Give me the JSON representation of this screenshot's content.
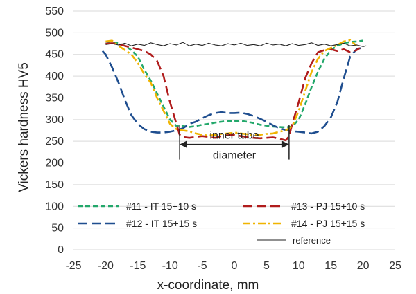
{
  "chart_data": {
    "type": "line",
    "xlabel": "x-coordinate, mm",
    "ylabel": "Vickers hardness  HV5",
    "xlim": [
      -25,
      25
    ],
    "ylim": [
      0,
      550
    ],
    "xticks": [
      -25,
      -20,
      -15,
      -10,
      -5,
      0,
      5,
      10,
      15,
      20,
      25
    ],
    "yticks": [
      0,
      50,
      100,
      150,
      200,
      250,
      300,
      350,
      400,
      450,
      500,
      550
    ],
    "grid": "horizontal",
    "legend_position": "lower",
    "annotation": {
      "lines": [
        "inner tube",
        "diameter"
      ],
      "x_range": [
        -8.5,
        8.5
      ],
      "y": 243
    },
    "series": [
      {
        "name": "#11 - IT 15+10 s",
        "color": "#23a86b",
        "dash": "short-dash",
        "x": [
          -20,
          -19,
          -18,
          -17,
          -16,
          -15,
          -14,
          -13,
          -12,
          -11,
          -10,
          -9,
          -8,
          -7,
          -6,
          -5,
          -4,
          -3,
          -2,
          -1,
          0,
          1,
          2,
          3,
          4,
          5,
          6,
          7,
          8,
          9,
          10,
          11,
          12,
          13,
          14,
          15,
          16,
          17,
          18,
          19,
          20
        ],
        "y": [
          475,
          478,
          476,
          470,
          460,
          445,
          415,
          390,
          360,
          330,
          300,
          285,
          285,
          283,
          285,
          288,
          290,
          293,
          295,
          297,
          296,
          297,
          295,
          292,
          288,
          286,
          284,
          283,
          282,
          284,
          300,
          335,
          375,
          410,
          440,
          460,
          470,
          476,
          479,
          480,
          482
        ]
      },
      {
        "name": "#12 - IT 15+15 s",
        "color": "#1f4e8f",
        "dash": "long-dash",
        "x": [
          -20.5,
          -20,
          -19,
          -18,
          -17,
          -16,
          -15,
          -14,
          -13,
          -12,
          -11,
          -10,
          -9,
          -8,
          -7,
          -6,
          -5,
          -4,
          -3,
          -2,
          -1,
          0,
          1,
          2,
          3,
          4,
          5,
          6,
          7,
          8,
          9,
          10,
          11,
          12,
          13,
          14,
          15,
          16,
          17,
          18,
          19,
          20
        ],
        "y": [
          458,
          450,
          420,
          385,
          345,
          310,
          290,
          278,
          272,
          270,
          270,
          272,
          275,
          280,
          290,
          295,
          303,
          310,
          315,
          317,
          315,
          315,
          316,
          313,
          308,
          302,
          295,
          287,
          280,
          276,
          273,
          272,
          270,
          268,
          272,
          285,
          305,
          340,
          395,
          445,
          462,
          466
        ]
      },
      {
        "name": "#13 - PJ 15+10 s",
        "color": "#b01c1c",
        "dash": "long-dash",
        "x": [
          -20,
          -19,
          -18,
          -17,
          -16,
          -15,
          -14,
          -13,
          -12,
          -11,
          -10,
          -9,
          -8.5,
          -8,
          -7,
          -6,
          -5,
          -4,
          -3,
          -2,
          -1,
          0,
          1,
          2,
          3,
          4,
          5,
          6,
          7,
          8,
          8.5,
          9,
          10,
          11,
          12,
          13,
          14,
          15,
          16,
          17,
          18,
          19,
          19.5
        ],
        "y": [
          475,
          476,
          474,
          470,
          466,
          462,
          458,
          450,
          435,
          400,
          340,
          290,
          265,
          260,
          258,
          260,
          262,
          260,
          258,
          262,
          264,
          265,
          262,
          260,
          258,
          257,
          258,
          259,
          256,
          252,
          262,
          290,
          340,
          395,
          430,
          455,
          460,
          462,
          458,
          462,
          455,
          460,
          465
        ]
      },
      {
        "name": "#14 - PJ 15+15 s",
        "color": "#f0b400",
        "dash": "dash-dot",
        "x": [
          -20,
          -19,
          -18,
          -17,
          -16,
          -15,
          -14,
          -13,
          -12,
          -11,
          -10,
          -9,
          -8,
          -7,
          -6,
          -5,
          -4,
          -3,
          -2,
          -1,
          0,
          1,
          2,
          3,
          4,
          5,
          6,
          7,
          8,
          9,
          10,
          11,
          12,
          13,
          14,
          15,
          16,
          17,
          18,
          19
        ],
        "y": [
          480,
          482,
          470,
          460,
          450,
          430,
          405,
          385,
          350,
          320,
          290,
          278,
          275,
          273,
          268,
          265,
          263,
          265,
          267,
          268,
          270,
          268,
          266,
          264,
          265,
          267,
          268,
          272,
          275,
          285,
          320,
          365,
          410,
          440,
          458,
          465,
          472,
          480,
          483,
          470
        ]
      },
      {
        "name": "reference",
        "color": "#222222",
        "dash": "solid-thin",
        "x": [
          -20,
          -19,
          -18,
          -17,
          -16,
          -15,
          -14,
          -13,
          -12,
          -11,
          -10,
          -9,
          -8,
          -7,
          -6,
          -5,
          -4,
          -3,
          -2,
          -1,
          0,
          1,
          2,
          3,
          4,
          5,
          6,
          7,
          8,
          9,
          10,
          11,
          12,
          13,
          14,
          15,
          16,
          17,
          18,
          19,
          20,
          20.5
        ],
        "y": [
          473,
          475,
          472,
          476,
          470,
          474,
          471,
          477,
          473,
          470,
          475,
          472,
          478,
          470,
          474,
          471,
          476,
          472,
          470,
          475,
          472,
          476,
          471,
          473,
          470,
          476,
          472,
          474,
          470,
          475,
          471,
          473,
          477,
          471,
          474,
          470,
          473,
          476,
          470,
          472,
          468,
          470
        ]
      }
    ]
  }
}
